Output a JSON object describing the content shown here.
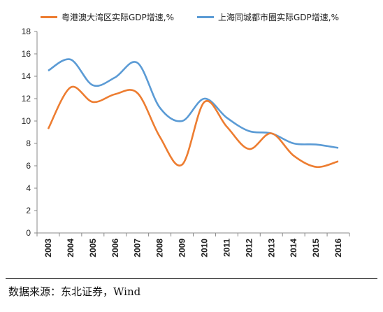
{
  "chart_data": {
    "type": "line",
    "x": [
      "2003",
      "2004",
      "2005",
      "2006",
      "2007",
      "2008",
      "2009",
      "2010",
      "2011",
      "2012",
      "2013",
      "2014",
      "2015",
      "2016"
    ],
    "series": [
      {
        "name": "粤港澳大湾区实际GDP增速,%",
        "color": "#ed7d31",
        "values": [
          9.3,
          13.0,
          11.7,
          12.4,
          12.5,
          8.6,
          6.1,
          11.7,
          9.5,
          7.5,
          8.9,
          6.9,
          5.9,
          6.4
        ]
      },
      {
        "name": "上海同城都市圈实际GDP增速,%",
        "color": "#5b9bd5",
        "values": [
          14.5,
          15.5,
          13.2,
          13.9,
          15.2,
          11.2,
          10.0,
          12.0,
          10.3,
          9.1,
          8.9,
          8.0,
          7.9,
          7.6
        ]
      }
    ],
    "ylim": [
      0,
      18
    ],
    "yticks": [
      0,
      2,
      4,
      6,
      8,
      10,
      12,
      14,
      16,
      18
    ],
    "grid": false,
    "legend": "top"
  },
  "footer": {
    "source": "数据来源：东北证券，Wind"
  }
}
